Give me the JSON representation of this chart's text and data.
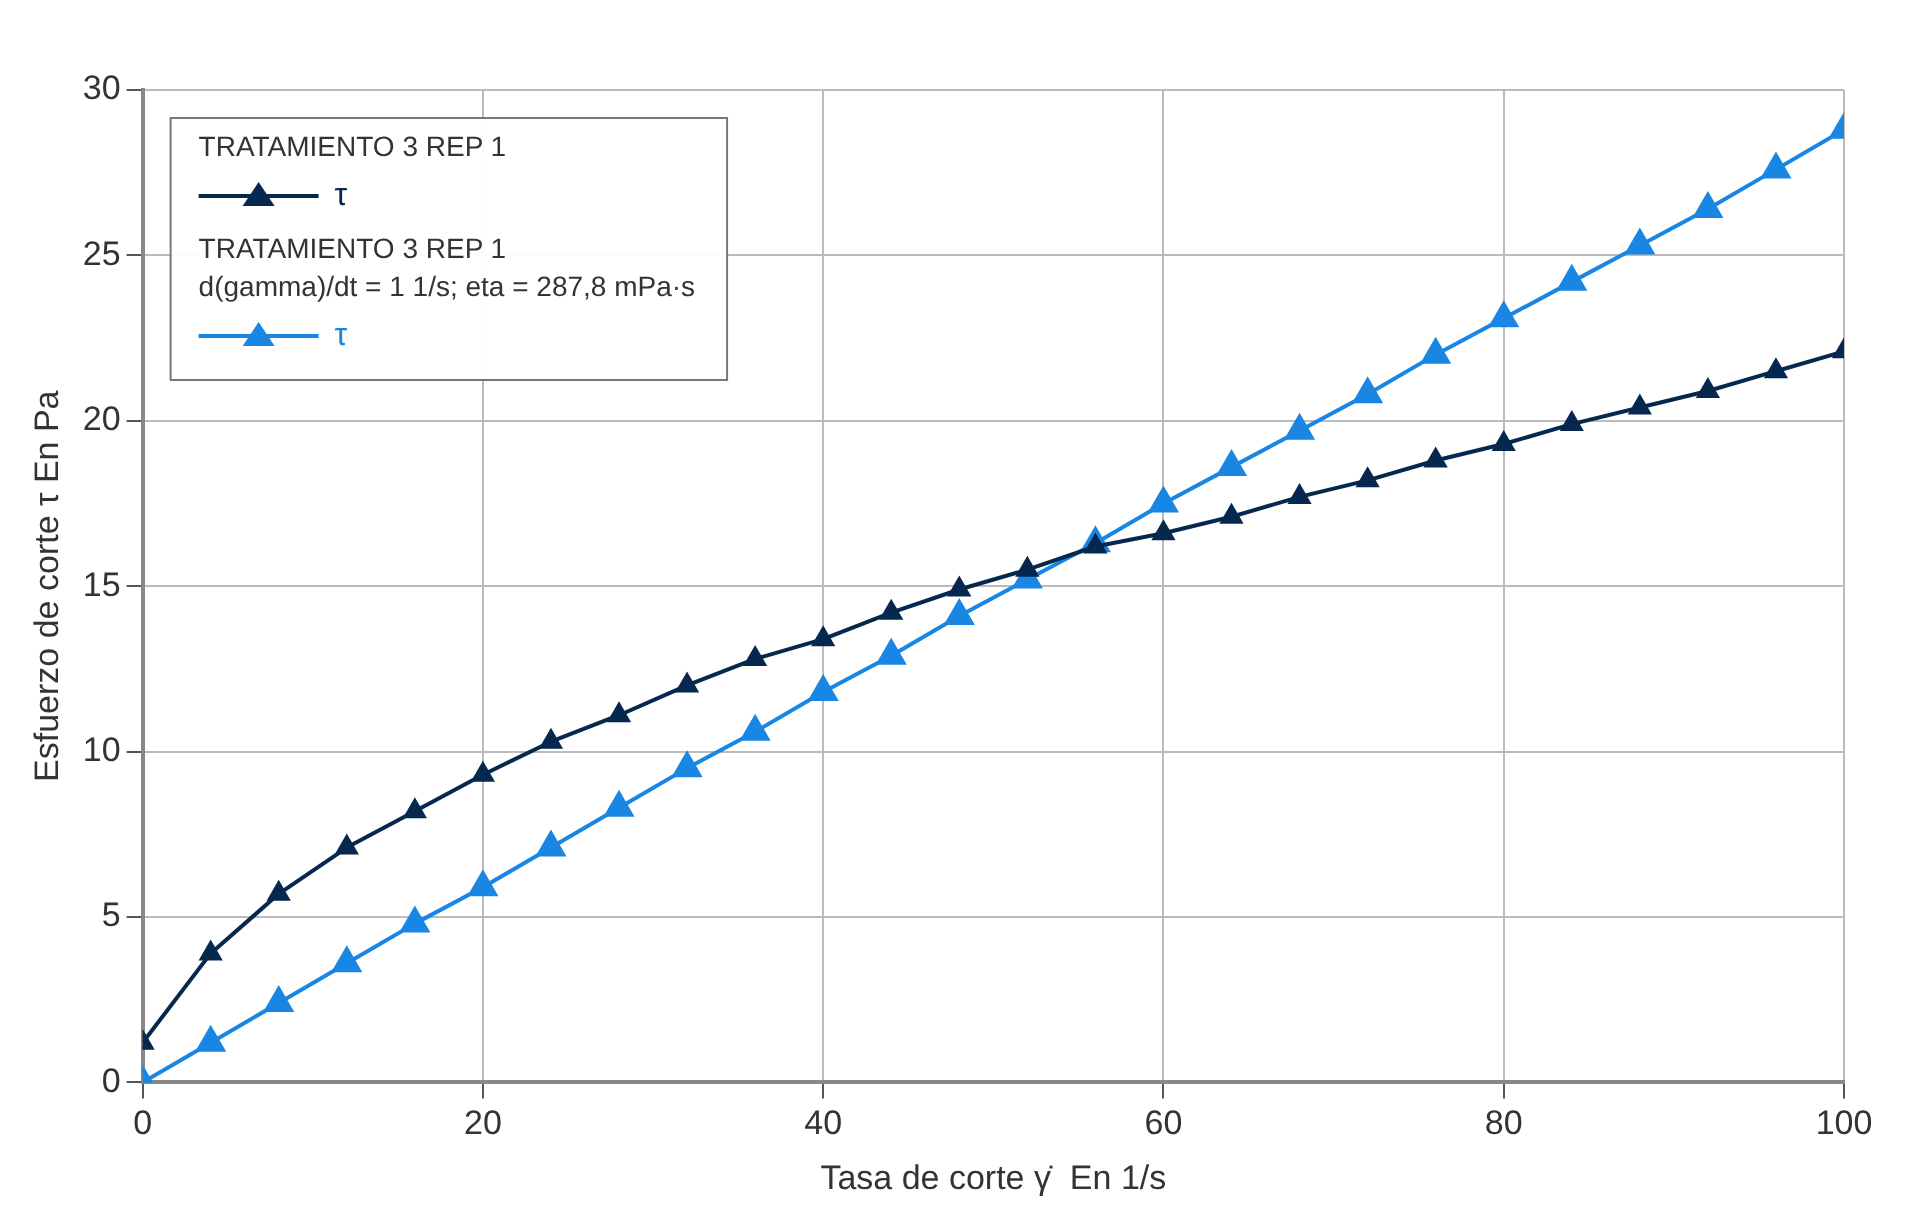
{
  "chart_data": {
    "type": "line",
    "xlabel": "Tasa de corte γ̇  En 1/s",
    "ylabel": "Esfuerzo de corte τ En Pa",
    "x": [
      0,
      4,
      8,
      12,
      16,
      20,
      24,
      28,
      32,
      36,
      40,
      44,
      48,
      52,
      56,
      60,
      64,
      68,
      72,
      76,
      80,
      84,
      88,
      92,
      96,
      100
    ],
    "series": [
      {
        "name": "τ",
        "color": "#06284f",
        "values": [
          1.2,
          3.9,
          5.7,
          7.1,
          8.2,
          9.3,
          10.3,
          11.1,
          12.0,
          12.8,
          13.4,
          14.2,
          14.9,
          15.5,
          16.2,
          16.6,
          17.1,
          17.7,
          18.2,
          18.8,
          19.3,
          19.9,
          20.4,
          20.9,
          21.5,
          22.1
        ]
      },
      {
        "name": "τ",
        "color": "#1a86e4",
        "values": [
          0,
          1.2,
          2.4,
          3.6,
          4.8,
          5.9,
          7.1,
          8.3,
          9.5,
          10.6,
          11.8,
          12.9,
          14.1,
          15.2,
          16.3,
          17.5,
          18.6,
          19.7,
          20.8,
          22.0,
          23.1,
          24.2,
          25.3,
          26.4,
          27.6,
          28.8
        ]
      }
    ],
    "annotations": [
      "TRATAMIENTO 3 REP 1",
      "TRATAMIENTO 3 REP 1",
      "d(gamma)/dt = 1 1/s; eta = 287,8 mPa·s"
    ],
    "xlim": [
      0,
      100
    ],
    "xticks": [
      0,
      20,
      40,
      60,
      80,
      100
    ],
    "ylim": [
      0,
      30
    ],
    "yticks": [
      0,
      5,
      10,
      15,
      20,
      25,
      30
    ],
    "grid": true,
    "legend": "top left",
    "marker": "triangle",
    "line_style": "solid"
  }
}
